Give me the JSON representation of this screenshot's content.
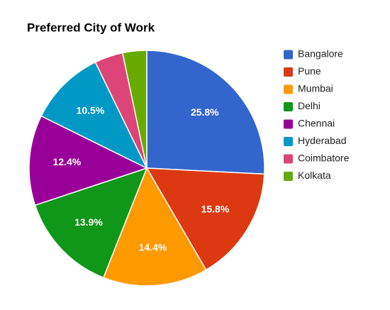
{
  "chart_data": {
    "type": "pie",
    "title": "Preferred City of Work",
    "categories": [
      "Bangalore",
      "Pune",
      "Mumbai",
      "Delhi",
      "Chennai",
      "Hyderabad",
      "Coimbatore",
      "Kolkata"
    ],
    "values": [
      25.8,
      15.8,
      14.4,
      13.9,
      12.4,
      10.5,
      3.9,
      3.3
    ],
    "value_labels": [
      "25.8%",
      "15.8%",
      "14.4%",
      "13.9%",
      "12.4%",
      "10.5%",
      null,
      null
    ],
    "colors": [
      "#3366cc",
      "#dc3912",
      "#ff9900",
      "#109618",
      "#990099",
      "#0099c6",
      "#dd4477",
      "#66aa00"
    ],
    "legend": "right"
  }
}
